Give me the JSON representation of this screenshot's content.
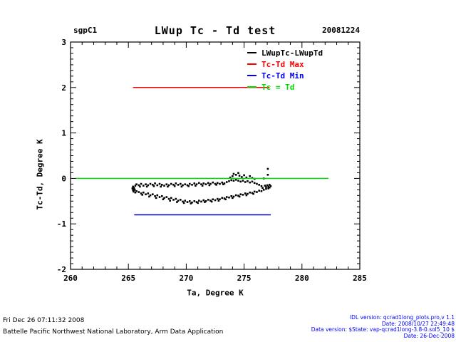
{
  "header": {
    "site": "sgpC1",
    "title": "LWup Tc - Td test",
    "date": "20081224"
  },
  "legend": [
    {
      "label": "LWupTc-LWupTd",
      "color": "#000000"
    },
    {
      "label": "Tc-Td Max",
      "color": "#ff0000"
    },
    {
      "label": "Tc-Td Min",
      "color": "#0000ff"
    },
    {
      "label": "Tc = Td",
      "color": "#00dd00"
    }
  ],
  "footer": {
    "left": [
      "Fri Dec 26 07:11:32 2008",
      "Battelle Pacific Northwest National Laboratory, Arm Data Application"
    ],
    "right": [
      "IDL version: qcrad1long_plots.pro,v 1.1",
      "Date: 2008/10/27 22:49:48",
      "Data version: $State: vap-qcrad1long-3.8-0.sol5_10 $",
      "Date: 26-Dec-2008"
    ]
  },
  "chart_data": {
    "type": "scatter",
    "title": "LWup Tc - Td test",
    "xlabel": "Ta, Degree K",
    "ylabel": "Tc-Td, Degree K",
    "xlim": [
      260,
      285
    ],
    "ylim": [
      -2,
      3
    ],
    "x_ticks": [
      260,
      265,
      270,
      275,
      280,
      285
    ],
    "y_ticks": [
      -2,
      -1,
      0,
      1,
      2,
      3
    ],
    "x_minor_step": 1,
    "y_minor_step": 0.125,
    "grid": false,
    "legend_position": "top-right-inside",
    "lines": [
      {
        "name": "Tc-Td Max",
        "color": "#ee0000",
        "y": 2.0,
        "x_start": 265.4,
        "x_end": 277.2
      },
      {
        "name": "Tc-Td Min",
        "color": "#0000bb",
        "y": -0.8,
        "x_start": 265.5,
        "x_end": 277.3
      },
      {
        "name": "Tc = Td",
        "color": "#00dd00",
        "y": 0.0,
        "x_start": 260.5,
        "x_end": 282.3
      }
    ],
    "series": [
      {
        "name": "LWupTc-LWupTd",
        "type": "scatter",
        "color": "#000000",
        "points": [
          [
            265.45,
            -0.2
          ],
          [
            265.6,
            -0.16
          ],
          [
            265.7,
            -0.13
          ],
          [
            265.9,
            -0.15
          ],
          [
            266.1,
            -0.12
          ],
          [
            266.3,
            -0.16
          ],
          [
            266.5,
            -0.13
          ],
          [
            266.7,
            -0.15
          ],
          [
            266.9,
            -0.12
          ],
          [
            267.1,
            -0.14
          ],
          [
            267.3,
            -0.11
          ],
          [
            267.5,
            -0.15
          ],
          [
            267.7,
            -0.12
          ],
          [
            267.9,
            -0.14
          ],
          [
            268.1,
            -0.16
          ],
          [
            268.3,
            -0.13
          ],
          [
            268.5,
            -0.15
          ],
          [
            268.7,
            -0.12
          ],
          [
            268.9,
            -0.14
          ],
          [
            269.1,
            -0.11
          ],
          [
            269.3,
            -0.14
          ],
          [
            269.5,
            -0.12
          ],
          [
            269.7,
            -0.15
          ],
          [
            269.9,
            -0.13
          ],
          [
            270.1,
            -0.15
          ],
          [
            270.3,
            -0.12
          ],
          [
            270.5,
            -0.14
          ],
          [
            270.7,
            -0.11
          ],
          [
            270.9,
            -0.13
          ],
          [
            271.1,
            -0.1
          ],
          [
            271.3,
            -0.13
          ],
          [
            271.5,
            -0.11
          ],
          [
            271.7,
            -0.13
          ],
          [
            271.9,
            -0.1
          ],
          [
            272.1,
            -0.12
          ],
          [
            272.3,
            -0.09
          ],
          [
            272.5,
            -0.12
          ],
          [
            272.7,
            -0.1
          ],
          [
            272.9,
            -0.12
          ],
          [
            273.1,
            -0.09
          ],
          [
            273.3,
            -0.11
          ],
          [
            273.5,
            -0.08
          ],
          [
            273.7,
            -0.06
          ],
          [
            273.9,
            -0.04
          ],
          [
            274.1,
            -0.05
          ],
          [
            274.3,
            -0.03
          ],
          [
            274.5,
            -0.05
          ],
          [
            274.7,
            -0.07
          ],
          [
            274.9,
            -0.05
          ],
          [
            275.1,
            -0.08
          ],
          [
            275.3,
            -0.06
          ],
          [
            275.5,
            -0.09
          ],
          [
            275.7,
            -0.07
          ],
          [
            275.9,
            -0.1
          ],
          [
            276.1,
            -0.12
          ],
          [
            276.3,
            -0.14
          ],
          [
            266.0,
            -0.18
          ],
          [
            266.6,
            -0.18
          ],
          [
            267.2,
            -0.17
          ],
          [
            267.8,
            -0.18
          ],
          [
            268.4,
            -0.18
          ],
          [
            269.0,
            -0.17
          ],
          [
            269.6,
            -0.18
          ],
          [
            270.2,
            -0.17
          ],
          [
            270.8,
            -0.16
          ],
          [
            271.4,
            -0.16
          ],
          [
            272.0,
            -0.15
          ],
          [
            272.6,
            -0.14
          ],
          [
            273.2,
            -0.13
          ],
          [
            265.55,
            -0.25
          ],
          [
            265.7,
            -0.28
          ],
          [
            265.9,
            -0.3
          ],
          [
            266.1,
            -0.33
          ],
          [
            266.3,
            -0.31
          ],
          [
            266.5,
            -0.35
          ],
          [
            266.7,
            -0.33
          ],
          [
            266.9,
            -0.37
          ],
          [
            267.1,
            -0.35
          ],
          [
            267.3,
            -0.39
          ],
          [
            267.5,
            -0.37
          ],
          [
            267.7,
            -0.41
          ],
          [
            267.9,
            -0.39
          ],
          [
            268.1,
            -0.43
          ],
          [
            268.3,
            -0.41
          ],
          [
            268.5,
            -0.45
          ],
          [
            268.7,
            -0.43
          ],
          [
            268.9,
            -0.47
          ],
          [
            269.1,
            -0.45
          ],
          [
            269.3,
            -0.49
          ],
          [
            269.5,
            -0.47
          ],
          [
            269.7,
            -0.51
          ],
          [
            269.9,
            -0.49
          ],
          [
            270.1,
            -0.52
          ],
          [
            270.3,
            -0.5
          ],
          [
            270.5,
            -0.53
          ],
          [
            270.7,
            -0.5
          ],
          [
            270.9,
            -0.52
          ],
          [
            271.1,
            -0.49
          ],
          [
            271.3,
            -0.51
          ],
          [
            271.5,
            -0.48
          ],
          [
            271.7,
            -0.5
          ],
          [
            271.9,
            -0.47
          ],
          [
            272.1,
            -0.49
          ],
          [
            272.3,
            -0.46
          ],
          [
            272.5,
            -0.48
          ],
          [
            272.7,
            -0.45
          ],
          [
            272.9,
            -0.46
          ],
          [
            273.1,
            -0.43
          ],
          [
            273.3,
            -0.44
          ],
          [
            273.5,
            -0.41
          ],
          [
            273.7,
            -0.42
          ],
          [
            273.9,
            -0.39
          ],
          [
            274.1,
            -0.4
          ],
          [
            274.3,
            -0.37
          ],
          [
            274.5,
            -0.38
          ],
          [
            274.7,
            -0.35
          ],
          [
            274.9,
            -0.36
          ],
          [
            275.1,
            -0.33
          ],
          [
            275.3,
            -0.34
          ],
          [
            275.5,
            -0.31
          ],
          [
            275.7,
            -0.32
          ],
          [
            275.9,
            -0.29
          ],
          [
            276.1,
            -0.3
          ],
          [
            276.3,
            -0.27
          ],
          [
            276.5,
            -0.28
          ],
          [
            276.7,
            -0.25
          ],
          [
            276.9,
            -0.23
          ],
          [
            266.2,
            -0.36
          ],
          [
            266.8,
            -0.4
          ],
          [
            267.4,
            -0.43
          ],
          [
            268.0,
            -0.46
          ],
          [
            268.6,
            -0.49
          ],
          [
            269.2,
            -0.52
          ],
          [
            269.8,
            -0.54
          ],
          [
            270.4,
            -0.55
          ],
          [
            271.0,
            -0.54
          ],
          [
            271.6,
            -0.52
          ],
          [
            272.2,
            -0.51
          ],
          [
            272.8,
            -0.49
          ],
          [
            273.4,
            -0.46
          ],
          [
            274.0,
            -0.43
          ],
          [
            274.6,
            -0.4
          ],
          [
            275.2,
            -0.37
          ],
          [
            275.8,
            -0.34
          ],
          [
            265.35,
            -0.22
          ],
          [
            265.4,
            -0.26
          ],
          [
            265.5,
            -0.22
          ],
          [
            265.45,
            -0.29
          ],
          [
            265.6,
            -0.31
          ],
          [
            265.4,
            -0.18
          ],
          [
            277.0,
            -0.15
          ],
          [
            277.1,
            -0.18
          ],
          [
            277.2,
            -0.2
          ],
          [
            277.3,
            -0.17
          ],
          [
            277.1,
            -0.22
          ],
          [
            276.9,
            -0.19
          ],
          [
            276.8,
            -0.16
          ],
          [
            277.2,
            -0.14
          ],
          [
            276.6,
            -0.21
          ],
          [
            276.5,
            -0.17
          ],
          [
            273.8,
            0.02
          ],
          [
            274.0,
            0.05
          ],
          [
            274.1,
            0.1
          ],
          [
            274.3,
            0.08
          ],
          [
            274.5,
            0.12
          ],
          [
            274.6,
            0.06
          ],
          [
            274.8,
            0.03
          ],
          [
            275.0,
            0.07
          ],
          [
            275.2,
            0.02
          ],
          [
            275.5,
            0.05
          ],
          [
            275.7,
            0.01
          ],
          [
            275.9,
            -0.01
          ],
          [
            276.7,
            0.0
          ],
          [
            277.05,
            0.21
          ],
          [
            277.05,
            0.08
          ]
        ]
      }
    ]
  }
}
